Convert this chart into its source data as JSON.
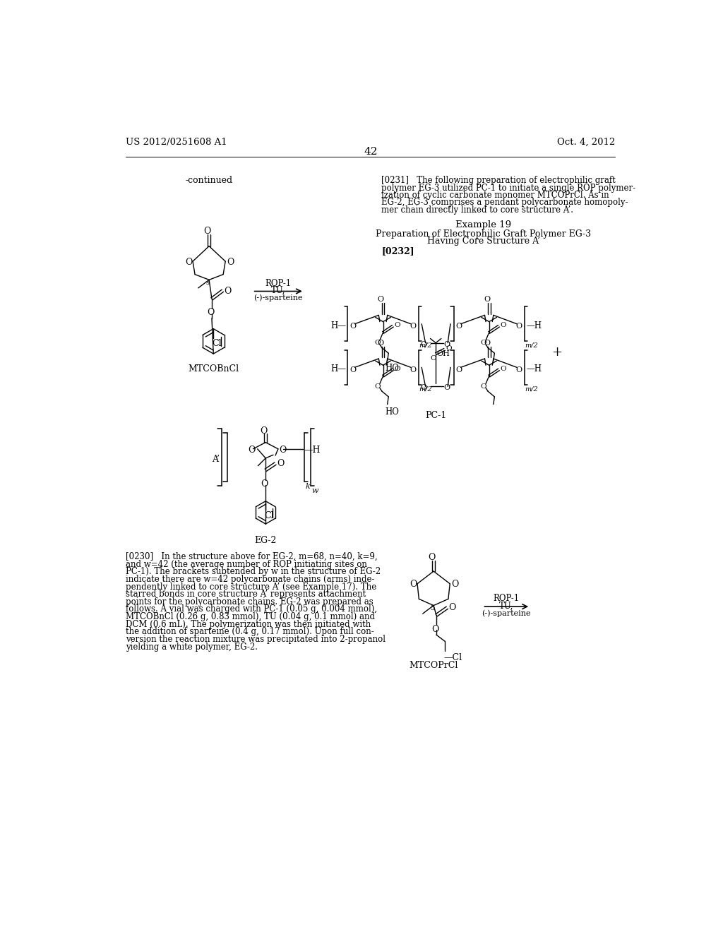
{
  "bg_color": "#ffffff",
  "header_left": "US 2012/0251608 A1",
  "header_right": "Oct. 4, 2012",
  "page_number": "42",
  "continued_text": "-continued",
  "molecule1_name": "MTCOBnCl",
  "molecule2_name": "EG-2",
  "molecule3_name": "PC-1",
  "molecule4_name": "MTCOPrCl",
  "example19_title": "Example 19",
  "example19_sub1": "Preparation of Electrophilic Graft Polymer EG-3",
  "example19_sub2": "Having Core Structure A’",
  "para231_lines": [
    "[0231]   The following preparation of electrophilic graft",
    "polymer EG-3 utilized PC-1 to initiate a single ROP polymer-",
    "ization of cyclic carbonate monomer MTCOPrCl. As in",
    "EG-2, EG-3 comprises a pendant polycarbonate homopoly-",
    "mer chain directly linked to core structure A’."
  ],
  "para232": "[0232]",
  "para230_lines": [
    "[0230]   In the structure above for EG-2, m=68, n=40, k=9,",
    "and w=42 (the average number of ROP initiating sites on",
    "PC-1). The brackets subtended by w in the structure of EG-2",
    "indicate there are w=42 polycarbonate chains (arms) inde-",
    "pendently linked to core structure A’ (see Example 17). The",
    "starred bonds in core structure A’ represents attachment",
    "points for the polycarbonate chains. EG-2 was prepared as",
    "follows. A vial was charged with PC-1 (0.05 g, 0.004 mmol),",
    "MTCOBnCl (0.26 g, 0.83 mmol), TU (0.04 g, 0.1 mmol) and",
    "DCM (0.6 mL). The polymerization was then initiated with",
    "the addition of sparteine (0.4 g, 0.17 mmol). Upon full con-",
    "version the reaction mixture was precipitated into 2-propanol",
    "yielding a white polymer, EG-2."
  ]
}
